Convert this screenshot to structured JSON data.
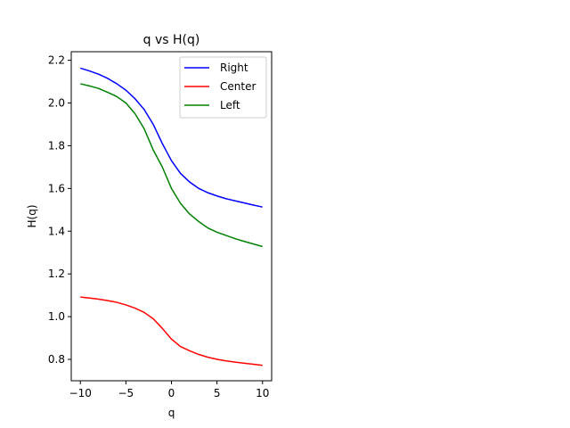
{
  "chart_data": {
    "type": "line",
    "title": "q vs H(q)",
    "xlabel": "q",
    "ylabel": "H(q)",
    "xlim": [
      -11,
      11
    ],
    "ylim": [
      0.7,
      2.24
    ],
    "xticks": [
      -10,
      -5,
      0,
      5,
      10
    ],
    "xtick_labels": [
      "−10",
      "−5",
      "0",
      "5",
      "10"
    ],
    "yticks": [
      0.8,
      1.0,
      1.2,
      1.4,
      1.6,
      1.8,
      2.0,
      2.2
    ],
    "ytick_labels": [
      "0.8",
      "1.0",
      "1.2",
      "1.4",
      "1.6",
      "1.8",
      "2.0",
      "2.2"
    ],
    "grid": false,
    "legend_position": "top-right",
    "x": [
      -10,
      -9,
      -8,
      -7,
      -6,
      -5,
      -4,
      -3,
      -2,
      -1,
      0,
      1,
      2,
      3,
      4,
      5,
      6,
      7,
      8,
      9,
      10
    ],
    "series": [
      {
        "name": "Right",
        "color": "#0000ff",
        "values": [
          2.163,
          2.15,
          2.135,
          2.115,
          2.09,
          2.06,
          2.02,
          1.97,
          1.9,
          1.81,
          1.73,
          1.67,
          1.63,
          1.6,
          1.58,
          1.565,
          1.552,
          1.542,
          1.532,
          1.522,
          1.513
        ]
      },
      {
        "name": "Center",
        "color": "#ff0000",
        "values": [
          1.092,
          1.087,
          1.082,
          1.075,
          1.067,
          1.055,
          1.04,
          1.02,
          0.99,
          0.945,
          0.895,
          0.86,
          0.84,
          0.823,
          0.81,
          0.8,
          0.793,
          0.787,
          0.782,
          0.777,
          0.772
        ]
      },
      {
        "name": "Left",
        "color": "#008000",
        "values": [
          2.09,
          2.08,
          2.068,
          2.05,
          2.03,
          2.0,
          1.95,
          1.88,
          1.78,
          1.7,
          1.6,
          1.53,
          1.48,
          1.445,
          1.415,
          1.395,
          1.38,
          1.365,
          1.352,
          1.34,
          1.328
        ]
      }
    ]
  }
}
